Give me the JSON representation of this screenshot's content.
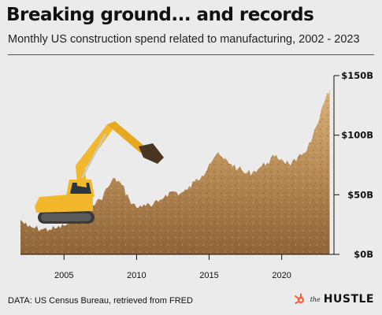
{
  "chart_data": {
    "type": "area",
    "title": "Breaking ground... and records",
    "subtitle": "Monthly US construction spend related to manufacturing, 2002 - 2023",
    "xlabel": "",
    "ylabel": "",
    "x_ticks": [
      "2005",
      "2010",
      "2015",
      "2020"
    ],
    "y_ticks": [
      "$0B",
      "$50B",
      "$100B",
      "$150B"
    ],
    "xlim": [
      2002,
      2023.6
    ],
    "ylim": [
      0,
      150
    ],
    "x": [
      2002,
      2002.5,
      2003,
      2003.5,
      2004,
      2004.5,
      2005,
      2005.5,
      2006,
      2006.5,
      2007,
      2007.5,
      2008,
      2008.5,
      2009,
      2009.5,
      2010,
      2010.5,
      2011,
      2011.5,
      2012,
      2012.5,
      2013,
      2013.5,
      2014,
      2014.5,
      2015,
      2015.5,
      2016,
      2016.5,
      2017,
      2017.5,
      2018,
      2018.5,
      2019,
      2019.5,
      2020,
      2020.5,
      2021,
      2021.5,
      2022,
      2022.5,
      2023,
      2023.3
    ],
    "series": [
      {
        "values": [
          29,
          23,
          22,
          21,
          21,
          22,
          24,
          27,
          31,
          36,
          41,
          46,
          56,
          64,
          58,
          46,
          39,
          42,
          40,
          44,
          50,
          53,
          51,
          54,
          61,
          66,
          76,
          84,
          80,
          76,
          72,
          68,
          69,
          73,
          77,
          82,
          80,
          76,
          78,
          85,
          94,
          110,
          130,
          138
        ]
      }
    ],
    "grid": false,
    "legend": "none",
    "fill_color": "#b08552",
    "fill_highlight": "#d2a86e"
  },
  "footer": {
    "source": "DATA: US Census Bureau, retrieved from FRED"
  },
  "brand": {
    "prefix": "the",
    "name": "HUSTLE",
    "logo_icon": "sprocket-icon",
    "logo_color": "#ff5c35"
  },
  "decoration": {
    "excavator_icon": "excavator-icon",
    "excavator_color": "#f2b72b"
  }
}
